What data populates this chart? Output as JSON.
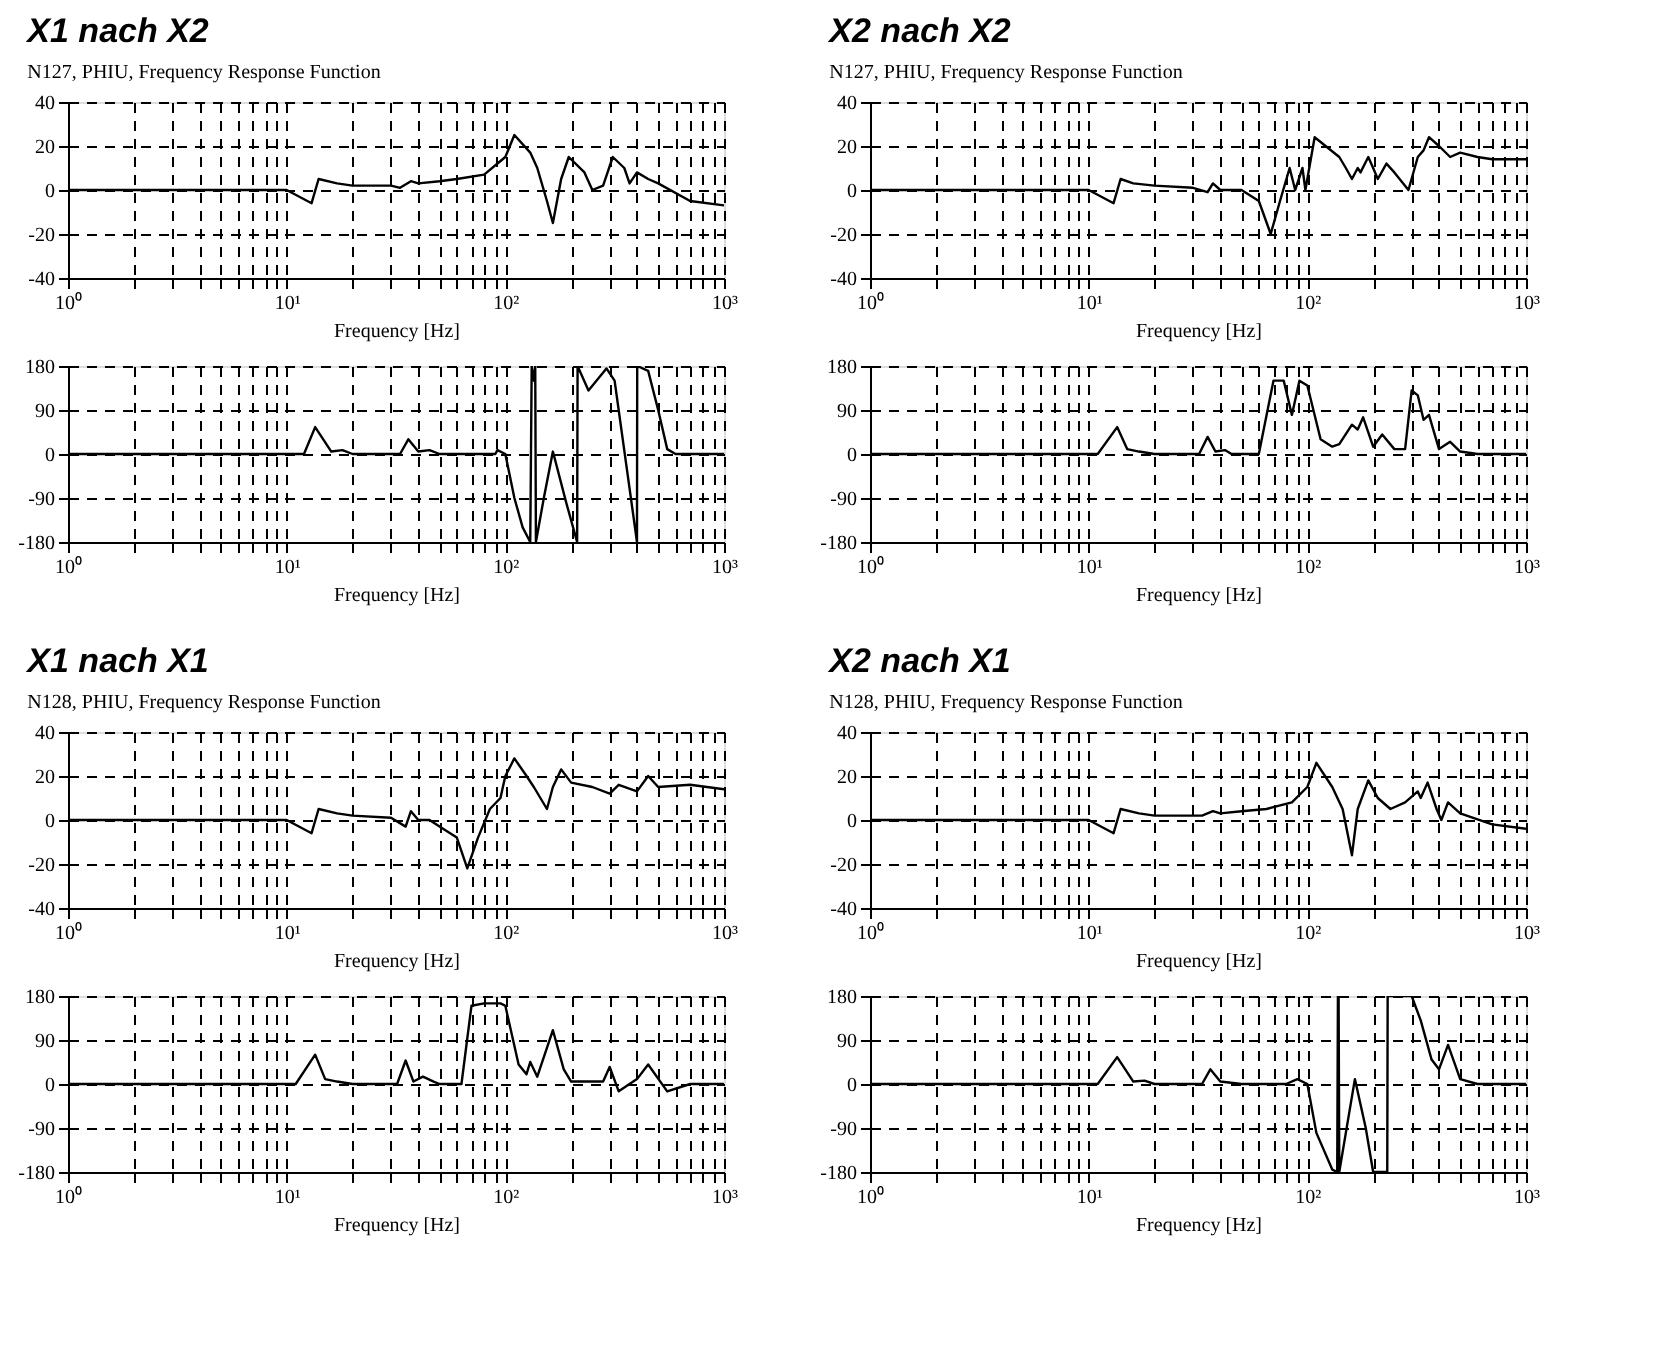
{
  "chart_data": [
    {
      "type": "line",
      "title": "X1 nach X2",
      "subtitle": "N127, PHIU, Frequency Response Function",
      "xlabel": "Frequency [Hz]",
      "log": "x",
      "grid": true,
      "color": "#000000",
      "xlim": [
        1,
        1000
      ],
      "ylim": [
        -40,
        40
      ],
      "yticks": [
        -40,
        -20,
        0,
        20,
        40
      ],
      "xticks": [
        {
          "value": 1,
          "label": "10⁰"
        },
        {
          "value": 2,
          "label": null
        },
        {
          "value": 3,
          "label": null
        },
        {
          "value": 4,
          "label": null
        },
        {
          "value": 5,
          "label": null
        },
        {
          "value": 6,
          "label": null
        },
        {
          "value": 7,
          "label": null
        },
        {
          "value": 8,
          "label": null
        },
        {
          "value": 9,
          "label": null
        },
        {
          "value": 10,
          "label": "10¹"
        },
        {
          "value": 20,
          "label": null
        },
        {
          "value": 30,
          "label": null
        },
        {
          "value": 40,
          "label": null
        },
        {
          "value": 50,
          "label": null
        },
        {
          "value": 60,
          "label": null
        },
        {
          "value": 70,
          "label": null
        },
        {
          "value": 80,
          "label": null
        },
        {
          "value": 90,
          "label": null
        },
        {
          "value": 100,
          "label": "10²"
        },
        {
          "value": 200,
          "label": null
        },
        {
          "value": 300,
          "label": null
        },
        {
          "value": 400,
          "label": null
        },
        {
          "value": 500,
          "label": null
        },
        {
          "value": 600,
          "label": null
        },
        {
          "value": 700,
          "label": null
        },
        {
          "value": 800,
          "label": null
        },
        {
          "value": 900,
          "label": null
        },
        {
          "value": 1000,
          "label": "10³"
        }
      ],
      "x": [
        1,
        10,
        13,
        14,
        17,
        20,
        30,
        33,
        37,
        40,
        50,
        60,
        80,
        100,
        110,
        130,
        140,
        155,
        165,
        180,
        195,
        230,
        250,
        280,
        310,
        350,
        370,
        400,
        450,
        500,
        700,
        1000
      ],
      "values": [
        0,
        0,
        -6,
        5,
        3,
        2,
        2,
        1,
        4,
        3,
        4,
        5,
        7,
        15,
        25,
        17,
        10,
        -5,
        -15,
        5,
        15,
        8,
        0,
        2,
        15,
        10,
        3,
        8,
        5,
        3,
        -5,
        -7
      ]
    },
    {
      "type": "line",
      "xlabel": "Frequency [Hz]",
      "log": "x",
      "grid": true,
      "color": "#000000",
      "xlim": [
        1,
        1000
      ],
      "ylim": [
        -180,
        180
      ],
      "yticks": [
        -180,
        -90,
        0,
        90,
        180
      ],
      "xticks": [
        {
          "value": 1,
          "label": "10⁰"
        },
        {
          "value": 2,
          "label": null
        },
        {
          "value": 3,
          "label": null
        },
        {
          "value": 4,
          "label": null
        },
        {
          "value": 5,
          "label": null
        },
        {
          "value": 6,
          "label": null
        },
        {
          "value": 7,
          "label": null
        },
        {
          "value": 8,
          "label": null
        },
        {
          "value": 9,
          "label": null
        },
        {
          "value": 10,
          "label": "10¹"
        },
        {
          "value": 20,
          "label": null
        },
        {
          "value": 30,
          "label": null
        },
        {
          "value": 40,
          "label": null
        },
        {
          "value": 50,
          "label": null
        },
        {
          "value": 60,
          "label": null
        },
        {
          "value": 70,
          "label": null
        },
        {
          "value": 80,
          "label": null
        },
        {
          "value": 90,
          "label": null
        },
        {
          "value": 100,
          "label": "10²"
        },
        {
          "value": 200,
          "label": null
        },
        {
          "value": 300,
          "label": null
        },
        {
          "value": 400,
          "label": null
        },
        {
          "value": 500,
          "label": null
        },
        {
          "value": 600,
          "label": null
        },
        {
          "value": 700,
          "label": null
        },
        {
          "value": 800,
          "label": null
        },
        {
          "value": 900,
          "label": null
        },
        {
          "value": 1000,
          "label": "10³"
        }
      ],
      "x": [
        1,
        12,
        13.5,
        16,
        18,
        20,
        33,
        36,
        40,
        45,
        50,
        90,
        92,
        100,
        110,
        120,
        130,
        132,
        135,
        137,
        138,
        150,
        165,
        190,
        213,
        214,
        240,
        290,
        316,
        400,
        401,
        450,
        500,
        550,
        600,
        1000
      ],
      "values": [
        0,
        0,
        55,
        5,
        8,
        0,
        0,
        30,
        5,
        8,
        0,
        0,
        8,
        0,
        -90,
        -150,
        -180,
        180,
        150,
        180,
        -180,
        -90,
        5,
        -100,
        -180,
        180,
        130,
        175,
        150,
        -180,
        180,
        170,
        90,
        10,
        0,
        0
      ]
    },
    {
      "type": "line",
      "title": "X2 nach X2",
      "subtitle": "N127, PHIU, Frequency Response Function",
      "xlabel": "Frequency [Hz]",
      "log": "x",
      "grid": true,
      "color": "#000000",
      "xlim": [
        1,
        1000
      ],
      "ylim": [
        -40,
        40
      ],
      "yticks": [
        -40,
        -20,
        0,
        20,
        40
      ],
      "xticks": [
        {
          "value": 1,
          "label": "10⁰"
        },
        {
          "value": 2,
          "label": null
        },
        {
          "value": 3,
          "label": null
        },
        {
          "value": 4,
          "label": null
        },
        {
          "value": 5,
          "label": null
        },
        {
          "value": 6,
          "label": null
        },
        {
          "value": 7,
          "label": null
        },
        {
          "value": 8,
          "label": null
        },
        {
          "value": 9,
          "label": null
        },
        {
          "value": 10,
          "label": "10¹"
        },
        {
          "value": 20,
          "label": null
        },
        {
          "value": 30,
          "label": null
        },
        {
          "value": 40,
          "label": null
        },
        {
          "value": 50,
          "label": null
        },
        {
          "value": 60,
          "label": null
        },
        {
          "value": 70,
          "label": null
        },
        {
          "value": 80,
          "label": null
        },
        {
          "value": 90,
          "label": null
        },
        {
          "value": 100,
          "label": "10²"
        },
        {
          "value": 200,
          "label": null
        },
        {
          "value": 300,
          "label": null
        },
        {
          "value": 400,
          "label": null
        },
        {
          "value": 500,
          "label": null
        },
        {
          "value": 600,
          "label": null
        },
        {
          "value": 700,
          "label": null
        },
        {
          "value": 800,
          "label": null
        },
        {
          "value": 900,
          "label": null
        },
        {
          "value": 1000,
          "label": "10³"
        }
      ],
      "x": [
        1,
        10,
        13,
        14,
        16,
        20,
        30,
        35,
        37,
        40,
        50,
        60,
        68,
        75,
        83,
        88,
        95,
        98,
        108,
        140,
        150,
        160,
        170,
        175,
        190,
        200,
        210,
        230,
        250,
        290,
        320,
        340,
        360,
        400,
        450,
        500,
        600,
        700,
        1000
      ],
      "values": [
        0,
        0,
        -6,
        5,
        3,
        2,
        1,
        -1,
        3,
        0,
        0,
        -5,
        -20,
        -5,
        10,
        0,
        10,
        0,
        24,
        15,
        10,
        5,
        10,
        8,
        15,
        10,
        5,
        12,
        8,
        0,
        15,
        18,
        24,
        20,
        15,
        17,
        15,
        14,
        14
      ]
    },
    {
      "type": "line",
      "xlabel": "Frequency [Hz]",
      "log": "x",
      "grid": true,
      "color": "#000000",
      "xlim": [
        1,
        1000
      ],
      "ylim": [
        -180,
        180
      ],
      "yticks": [
        -180,
        -90,
        0,
        90,
        180
      ],
      "xticks": [
        {
          "value": 1,
          "label": "10⁰"
        },
        {
          "value": 2,
          "label": null
        },
        {
          "value": 3,
          "label": null
        },
        {
          "value": 4,
          "label": null
        },
        {
          "value": 5,
          "label": null
        },
        {
          "value": 6,
          "label": null
        },
        {
          "value": 7,
          "label": null
        },
        {
          "value": 8,
          "label": null
        },
        {
          "value": 9,
          "label": null
        },
        {
          "value": 10,
          "label": "10¹"
        },
        {
          "value": 20,
          "label": null
        },
        {
          "value": 30,
          "label": null
        },
        {
          "value": 40,
          "label": null
        },
        {
          "value": 50,
          "label": null
        },
        {
          "value": 60,
          "label": null
        },
        {
          "value": 70,
          "label": null
        },
        {
          "value": 80,
          "label": null
        },
        {
          "value": 90,
          "label": null
        },
        {
          "value": 100,
          "label": "10²"
        },
        {
          "value": 200,
          "label": null
        },
        {
          "value": 300,
          "label": null
        },
        {
          "value": 400,
          "label": null
        },
        {
          "value": 500,
          "label": null
        },
        {
          "value": 600,
          "label": null
        },
        {
          "value": 700,
          "label": null
        },
        {
          "value": 800,
          "label": null
        },
        {
          "value": 900,
          "label": null
        },
        {
          "value": 1000,
          "label": "10³"
        }
      ],
      "x": [
        1,
        11,
        13.5,
        15,
        17,
        20,
        32,
        35,
        38,
        42,
        45,
        60,
        70,
        78,
        85,
        92,
        100,
        115,
        130,
        140,
        160,
        170,
        180,
        200,
        220,
        250,
        280,
        300,
        320,
        340,
        360,
        400,
        450,
        500,
        600,
        1000
      ],
      "values": [
        0,
        0,
        55,
        10,
        5,
        0,
        0,
        35,
        5,
        8,
        0,
        0,
        150,
        150,
        80,
        150,
        140,
        30,
        15,
        20,
        60,
        50,
        75,
        15,
        40,
        10,
        10,
        130,
        120,
        70,
        80,
        10,
        25,
        5,
        0,
        0
      ]
    },
    {
      "type": "line",
      "title": "X1 nach X1",
      "subtitle": "N128, PHIU, Frequency Response Function",
      "xlabel": "Frequency [Hz]",
      "log": "x",
      "grid": true,
      "color": "#000000",
      "xlim": [
        1,
        1000
      ],
      "ylim": [
        -40,
        40
      ],
      "yticks": [
        -40,
        -20,
        0,
        20,
        40
      ],
      "xticks": [
        {
          "value": 1,
          "label": "10⁰"
        },
        {
          "value": 2,
          "label": null
        },
        {
          "value": 3,
          "label": null
        },
        {
          "value": 4,
          "label": null
        },
        {
          "value": 5,
          "label": null
        },
        {
          "value": 6,
          "label": null
        },
        {
          "value": 7,
          "label": null
        },
        {
          "value": 8,
          "label": null
        },
        {
          "value": 9,
          "label": null
        },
        {
          "value": 10,
          "label": "10¹"
        },
        {
          "value": 20,
          "label": null
        },
        {
          "value": 30,
          "label": null
        },
        {
          "value": 40,
          "label": null
        },
        {
          "value": 50,
          "label": null
        },
        {
          "value": 60,
          "label": null
        },
        {
          "value": 70,
          "label": null
        },
        {
          "value": 80,
          "label": null
        },
        {
          "value": 90,
          "label": null
        },
        {
          "value": 100,
          "label": "10²"
        },
        {
          "value": 200,
          "label": null
        },
        {
          "value": 300,
          "label": null
        },
        {
          "value": 400,
          "label": null
        },
        {
          "value": 500,
          "label": null
        },
        {
          "value": 600,
          "label": null
        },
        {
          "value": 700,
          "label": null
        },
        {
          "value": 800,
          "label": null
        },
        {
          "value": 900,
          "label": null
        },
        {
          "value": 1000,
          "label": "10³"
        }
      ],
      "x": [
        1,
        10,
        13,
        14,
        17,
        20,
        30,
        35,
        37,
        40,
        45,
        50,
        60,
        67,
        75,
        85,
        95,
        100,
        110,
        125,
        135,
        155,
        165,
        180,
        200,
        250,
        300,
        330,
        400,
        450,
        500,
        700,
        1000
      ],
      "values": [
        0,
        0,
        -6,
        5,
        3,
        2,
        1,
        -3,
        4,
        0,
        0,
        -3,
        -8,
        -22,
        -8,
        5,
        10,
        20,
        28,
        20,
        15,
        5,
        15,
        23,
        17,
        15,
        12,
        16,
        13,
        20,
        15,
        16,
        14
      ]
    },
    {
      "type": "line",
      "xlabel": "Frequency [Hz]",
      "log": "x",
      "grid": true,
      "color": "#000000",
      "xlim": [
        1,
        1000
      ],
      "ylim": [
        -180,
        180
      ],
      "yticks": [
        -180,
        -90,
        0,
        90,
        180
      ],
      "xticks": [
        {
          "value": 1,
          "label": "10⁰"
        },
        {
          "value": 2,
          "label": null
        },
        {
          "value": 3,
          "label": null
        },
        {
          "value": 4,
          "label": null
        },
        {
          "value": 5,
          "label": null
        },
        {
          "value": 6,
          "label": null
        },
        {
          "value": 7,
          "label": null
        },
        {
          "value": 8,
          "label": null
        },
        {
          "value": 9,
          "label": null
        },
        {
          "value": 10,
          "label": "10¹"
        },
        {
          "value": 20,
          "label": null
        },
        {
          "value": 30,
          "label": null
        },
        {
          "value": 40,
          "label": null
        },
        {
          "value": 50,
          "label": null
        },
        {
          "value": 60,
          "label": null
        },
        {
          "value": 70,
          "label": null
        },
        {
          "value": 80,
          "label": null
        },
        {
          "value": 90,
          "label": null
        },
        {
          "value": 100,
          "label": "10²"
        },
        {
          "value": 200,
          "label": null
        },
        {
          "value": 300,
          "label": null
        },
        {
          "value": 400,
          "label": null
        },
        {
          "value": 500,
          "label": null
        },
        {
          "value": 600,
          "label": null
        },
        {
          "value": 700,
          "label": null
        },
        {
          "value": 800,
          "label": null
        },
        {
          "value": 900,
          "label": null
        },
        {
          "value": 1000,
          "label": "10³"
        }
      ],
      "x": [
        1,
        11,
        13.5,
        15,
        17,
        20,
        32,
        35,
        38,
        42,
        47,
        50,
        63,
        70,
        80,
        95,
        100,
        115,
        125,
        130,
        140,
        165,
        185,
        200,
        280,
        300,
        330,
        400,
        450,
        550,
        700,
        1000
      ],
      "values": [
        0,
        0,
        60,
        10,
        5,
        0,
        0,
        48,
        5,
        15,
        5,
        0,
        0,
        160,
        165,
        165,
        160,
        40,
        20,
        45,
        15,
        110,
        30,
        5,
        5,
        35,
        -15,
        10,
        40,
        -15,
        0,
        0
      ]
    },
    {
      "type": "line",
      "title": "X2 nach X1",
      "subtitle": "N128, PHIU, Frequency Response Function",
      "xlabel": "Frequency [Hz]",
      "log": "x",
      "grid": true,
      "color": "#000000",
      "xlim": [
        1,
        1000
      ],
      "ylim": [
        -40,
        40
      ],
      "yticks": [
        -40,
        -20,
        0,
        20,
        40
      ],
      "xticks": [
        {
          "value": 1,
          "label": "10⁰"
        },
        {
          "value": 2,
          "label": null
        },
        {
          "value": 3,
          "label": null
        },
        {
          "value": 4,
          "label": null
        },
        {
          "value": 5,
          "label": null
        },
        {
          "value": 6,
          "label": null
        },
        {
          "value": 7,
          "label": null
        },
        {
          "value": 8,
          "label": null
        },
        {
          "value": 9,
          "label": null
        },
        {
          "value": 10,
          "label": "10¹"
        },
        {
          "value": 20,
          "label": null
        },
        {
          "value": 30,
          "label": null
        },
        {
          "value": 40,
          "label": null
        },
        {
          "value": 50,
          "label": null
        },
        {
          "value": 60,
          "label": null
        },
        {
          "value": 70,
          "label": null
        },
        {
          "value": 80,
          "label": null
        },
        {
          "value": 90,
          "label": null
        },
        {
          "value": 100,
          "label": "10²"
        },
        {
          "value": 200,
          "label": null
        },
        {
          "value": 300,
          "label": null
        },
        {
          "value": 400,
          "label": null
        },
        {
          "value": 500,
          "label": null
        },
        {
          "value": 600,
          "label": null
        },
        {
          "value": 700,
          "label": null
        },
        {
          "value": 800,
          "label": null
        },
        {
          "value": 900,
          "label": null
        },
        {
          "value": 1000,
          "label": "10³"
        }
      ],
      "x": [
        1,
        10,
        13,
        14,
        17,
        20,
        33,
        37,
        40,
        50,
        65,
        85,
        100,
        110,
        130,
        145,
        160,
        170,
        190,
        210,
        240,
        280,
        320,
        330,
        355,
        390,
        410,
        440,
        500,
        700,
        1000
      ],
      "values": [
        0,
        0,
        -6,
        5,
        3,
        2,
        2,
        4,
        3,
        4,
        5,
        8,
        15,
        26,
        15,
        5,
        -16,
        5,
        18,
        10,
        5,
        8,
        13,
        10,
        17,
        5,
        0,
        8,
        3,
        -2,
        -4
      ]
    },
    {
      "type": "line",
      "xlabel": "Frequency [Hz]",
      "log": "x",
      "grid": true,
      "color": "#000000",
      "xlim": [
        1,
        1000
      ],
      "ylim": [
        -180,
        180
      ],
      "yticks": [
        -180,
        -90,
        0,
        90,
        180
      ],
      "xticks": [
        {
          "value": 1,
          "label": "10⁰"
        },
        {
          "value": 2,
          "label": null
        },
        {
          "value": 3,
          "label": null
        },
        {
          "value": 4,
          "label": null
        },
        {
          "value": 5,
          "label": null
        },
        {
          "value": 6,
          "label": null
        },
        {
          "value": 7,
          "label": null
        },
        {
          "value": 8,
          "label": null
        },
        {
          "value": 9,
          "label": null
        },
        {
          "value": 10,
          "label": "10¹"
        },
        {
          "value": 20,
          "label": null
        },
        {
          "value": 30,
          "label": null
        },
        {
          "value": 40,
          "label": null
        },
        {
          "value": 50,
          "label": null
        },
        {
          "value": 60,
          "label": null
        },
        {
          "value": 70,
          "label": null
        },
        {
          "value": 80,
          "label": null
        },
        {
          "value": 90,
          "label": null
        },
        {
          "value": 100,
          "label": "10²"
        },
        {
          "value": 200,
          "label": null
        },
        {
          "value": 300,
          "label": null
        },
        {
          "value": 400,
          "label": null
        },
        {
          "value": 500,
          "label": null
        },
        {
          "value": 600,
          "label": null
        },
        {
          "value": 700,
          "label": null
        },
        {
          "value": 800,
          "label": null
        },
        {
          "value": 900,
          "label": null
        },
        {
          "value": 1000,
          "label": "10³"
        }
      ],
      "x": [
        1,
        11,
        13.5,
        16,
        18,
        20,
        33,
        36,
        40,
        50,
        80,
        90,
        100,
        110,
        130,
        137,
        138,
        139,
        140,
        150,
        165,
        185,
        200,
        232,
        233,
        300,
        330,
        370,
        400,
        440,
        500,
        600,
        1000
      ],
      "values": [
        0,
        0,
        55,
        5,
        7,
        0,
        0,
        30,
        5,
        0,
        0,
        10,
        0,
        -100,
        -175,
        -180,
        180,
        180,
        -180,
        -100,
        10,
        -90,
        -180,
        -180,
        180,
        180,
        130,
        50,
        30,
        80,
        10,
        0,
        0
      ]
    }
  ]
}
